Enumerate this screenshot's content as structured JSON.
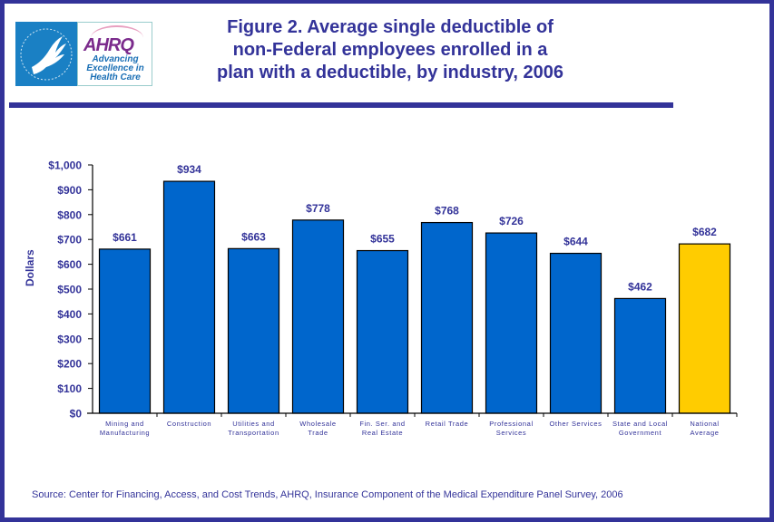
{
  "header": {
    "logo_left_alt": "HHS eagle logo",
    "logo_right_mark": "AHRQ",
    "logo_right_tagline": [
      "Advancing",
      "Excellence in",
      "Health Care"
    ],
    "title_lines": [
      "Figure 2. Average single deductible of",
      "non-Federal employees enrolled in a",
      "plan with a deductible, by industry, 2006"
    ]
  },
  "source": "Source: Center for Financing, Access, and Cost Trends, AHRQ, Insurance Component of the Medical Expenditure Panel Survey, 2006",
  "colors": {
    "text": "#333399",
    "bar": "#0066CC",
    "highlight_bar": "#FFCC00",
    "frame": "#333399"
  },
  "chart_data": {
    "type": "bar",
    "title": "Figure 2. Average single deductible of non-Federal employees enrolled in a plan with a deductible, by industry, 2006",
    "xlabel": "",
    "ylabel": "Dollars",
    "ylim": [
      0,
      1000
    ],
    "yticks": [
      0,
      100,
      200,
      300,
      400,
      500,
      600,
      700,
      800,
      900,
      1000
    ],
    "ytick_labels": [
      "$0",
      "$100",
      "$200",
      "$300",
      "$400",
      "$500",
      "$600",
      "$700",
      "$800",
      "$900",
      "$1,000"
    ],
    "grid": false,
    "legend": "none",
    "categories": [
      [
        "Mining and",
        "Manufacturing"
      ],
      [
        "Construction"
      ],
      [
        "Utilities and",
        "Transportation"
      ],
      [
        "Wholesale",
        "Trade"
      ],
      [
        "Fin. Ser. and",
        "Real Estate"
      ],
      [
        "Retail Trade"
      ],
      [
        "Professional",
        "Services"
      ],
      [
        "Other Services"
      ],
      [
        "State and Local",
        "Government"
      ],
      [
        "National",
        "Average"
      ]
    ],
    "values": [
      661,
      934,
      663,
      778,
      655,
      768,
      726,
      644,
      462,
      682
    ],
    "data_labels": [
      "$661",
      "$934",
      "$663",
      "$778",
      "$655",
      "$768",
      "$726",
      "$644",
      "$462",
      "$682"
    ],
    "highlight_index": 9
  }
}
